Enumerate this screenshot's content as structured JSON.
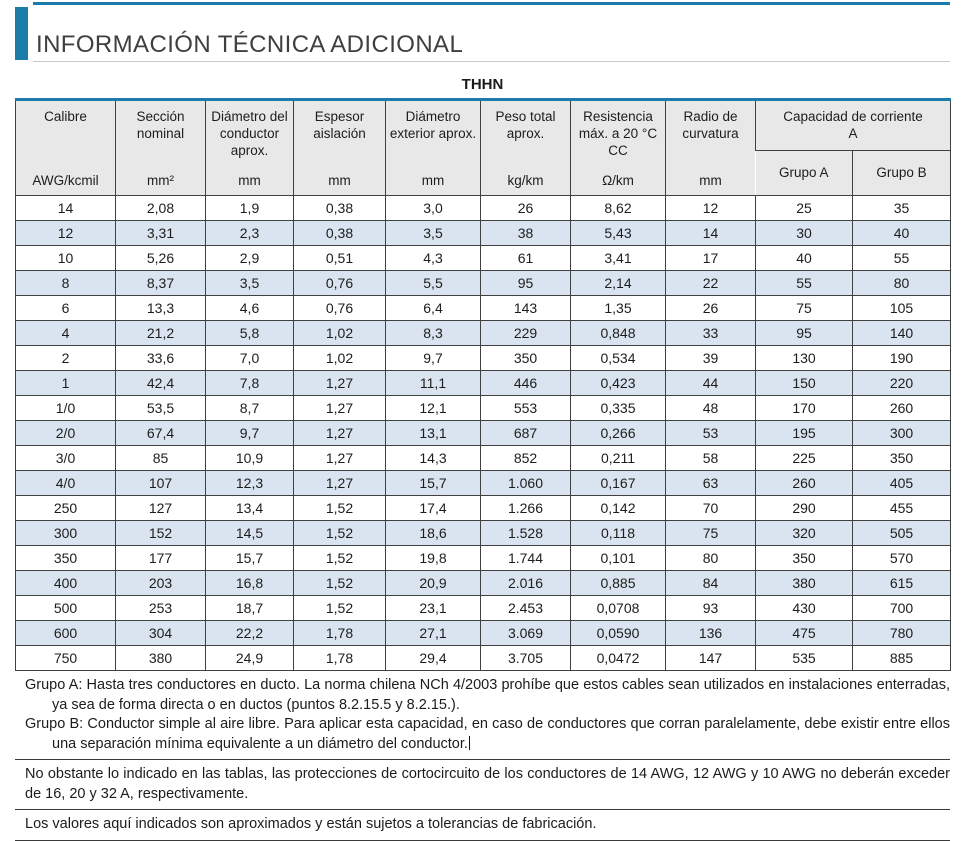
{
  "page": {
    "title": "INFORMACIÓN TÉCNICA ADICIONAL",
    "accent_color": "#1a7ca8"
  },
  "table": {
    "caption": "THHN",
    "columns": [
      {
        "name": "Calibre",
        "unit": "AWG/kcmil"
      },
      {
        "name": "Sección nominal",
        "unit": "mm²"
      },
      {
        "name": "Diámetro del conductor aprox.",
        "unit": "mm"
      },
      {
        "name": "Espesor aislación",
        "unit": "mm"
      },
      {
        "name": "Diámetro exterior aprox.",
        "unit": "mm"
      },
      {
        "name": "Peso total aprox.",
        "unit": "kg/km"
      },
      {
        "name": "Resistencia máx. a 20 °C CC",
        "unit": "Ω/km"
      },
      {
        "name": "Radio de curvatura",
        "unit": "mm"
      }
    ],
    "group_column": {
      "label": "Capacidad de corriente",
      "sublabel": "A",
      "subcolumns": [
        "Grupo A",
        "Grupo B"
      ]
    },
    "rows": [
      [
        "14",
        "2,08",
        "1,9",
        "0,38",
        "3,0",
        "26",
        "8,62",
        "12",
        "25",
        "35"
      ],
      [
        "12",
        "3,31",
        "2,3",
        "0,38",
        "3,5",
        "38",
        "5,43",
        "14",
        "30",
        "40"
      ],
      [
        "10",
        "5,26",
        "2,9",
        "0,51",
        "4,3",
        "61",
        "3,41",
        "17",
        "40",
        "55"
      ],
      [
        "8",
        "8,37",
        "3,5",
        "0,76",
        "5,5",
        "95",
        "2,14",
        "22",
        "55",
        "80"
      ],
      [
        "6",
        "13,3",
        "4,6",
        "0,76",
        "6,4",
        "143",
        "1,35",
        "26",
        "75",
        "105"
      ],
      [
        "4",
        "21,2",
        "5,8",
        "1,02",
        "8,3",
        "229",
        "0,848",
        "33",
        "95",
        "140"
      ],
      [
        "2",
        "33,6",
        "7,0",
        "1,02",
        "9,7",
        "350",
        "0,534",
        "39",
        "130",
        "190"
      ],
      [
        "1",
        "42,4",
        "7,8",
        "1,27",
        "11,1",
        "446",
        "0,423",
        "44",
        "150",
        "220"
      ],
      [
        "1/0",
        "53,5",
        "8,7",
        "1,27",
        "12,1",
        "553",
        "0,335",
        "48",
        "170",
        "260"
      ],
      [
        "2/0",
        "67,4",
        "9,7",
        "1,27",
        "13,1",
        "687",
        "0,266",
        "53",
        "195",
        "300"
      ],
      [
        "3/0",
        "85",
        "10,9",
        "1,27",
        "14,3",
        "852",
        "0,211",
        "58",
        "225",
        "350"
      ],
      [
        "4/0",
        "107",
        "12,3",
        "1,27",
        "15,7",
        "1.060",
        "0,167",
        "63",
        "260",
        "405"
      ],
      [
        "250",
        "127",
        "13,4",
        "1,52",
        "17,4",
        "1.266",
        "0,142",
        "70",
        "290",
        "455"
      ],
      [
        "300",
        "152",
        "14,5",
        "1,52",
        "18,6",
        "1.528",
        "0,118",
        "75",
        "320",
        "505"
      ],
      [
        "350",
        "177",
        "15,7",
        "1,52",
        "19,8",
        "1.744",
        "0,101",
        "80",
        "350",
        "570"
      ],
      [
        "400",
        "203",
        "16,8",
        "1,52",
        "20,9",
        "2.016",
        "0,885",
        "84",
        "380",
        "615"
      ],
      [
        "500",
        "253",
        "18,7",
        "1,52",
        "23,1",
        "2.453",
        "0,0708",
        "93",
        "430",
        "700"
      ],
      [
        "600",
        "304",
        "22,2",
        "1,78",
        "27,1",
        "3.069",
        "0,0590",
        "136",
        "475",
        "780"
      ],
      [
        "750",
        "380",
        "24,9",
        "1,78",
        "29,4",
        "3.705",
        "0,0472",
        "147",
        "535",
        "885"
      ]
    ]
  },
  "notes": {
    "grupo_a": "Grupo A: Hasta tres conductores en ducto. La norma chilena NCh 4/2003 prohíbe que estos cables sean utilizados en instalaciones enterradas, ya sea de forma directa o en ductos (puntos 8.2.15.5 y 8.2.15.).",
    "grupo_b": "Grupo B: Conductor simple al aire libre. Para aplicar esta capacidad, en caso de conductores que corran paralelamente, debe existir entre ellos una separación mínima equivalente a un diámetro del conductor.",
    "protections": "No obstante lo indicado en las tablas, las protecciones de cortocircuito de los conductores de 14 AWG, 12 AWG y 10 AWG no deberán exceder de 16, 20 y 32 A, respectivamente.",
    "tolerances": "Los valores aquí indicados son aproximados y están sujetos a tolerancias de fabricación."
  },
  "colors": {
    "accent": "#1a7ca8",
    "row_stripe": "#d9e4f0",
    "header_background": "#e8e8e8"
  }
}
